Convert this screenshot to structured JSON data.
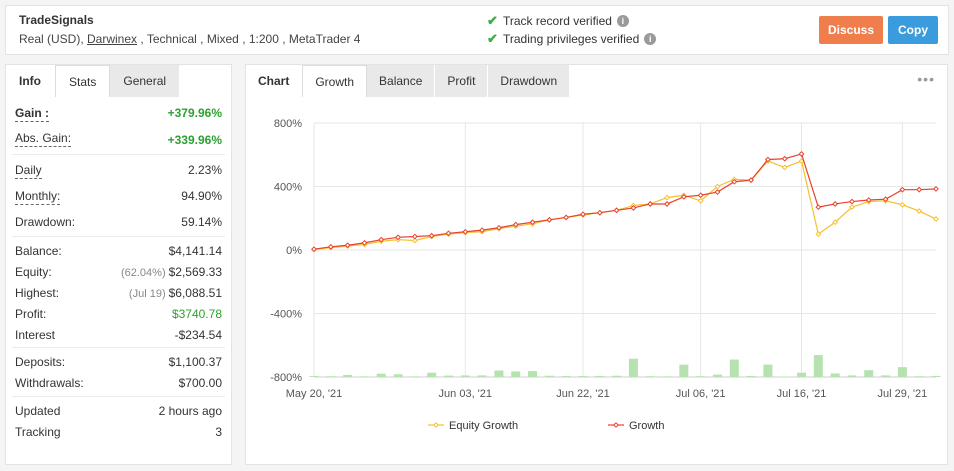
{
  "header": {
    "name": "TradeSignals",
    "meta_prefix": "Real (USD), ",
    "broker": "Darwinex",
    "meta_suffix": " , Technical , Mixed , 1:200 , MetaTrader 4",
    "verify1": "Track record verified",
    "verify2": "Trading privileges verified",
    "discuss_label": "Discuss",
    "copy_label": "Copy"
  },
  "left": {
    "tabs": [
      "Info",
      "Stats",
      "General"
    ],
    "rows": [
      {
        "label": "Gain :",
        "value": "+379.96%",
        "note": ""
      },
      {
        "label": "Abs. Gain:",
        "value": "+339.96%",
        "note": ""
      },
      {
        "label": "Daily",
        "value": "2.23%",
        "note": ""
      },
      {
        "label": "Monthly:",
        "value": "94.90%",
        "note": ""
      },
      {
        "label": "Drawdown:",
        "value": "59.14%",
        "note": ""
      },
      {
        "label": "Balance:",
        "value": "$4,141.14",
        "note": ""
      },
      {
        "label": "Equity:",
        "value": "$2,569.33",
        "note": "(62.04%)"
      },
      {
        "label": "Highest:",
        "value": "$6,088.51",
        "note": "(Jul 19)"
      },
      {
        "label": "Profit:",
        "value": "$3740.78",
        "note": ""
      },
      {
        "label": "Interest",
        "value": "-$234.54",
        "note": ""
      },
      {
        "label": "Deposits:",
        "value": "$1,100.37",
        "note": ""
      },
      {
        "label": "Withdrawals:",
        "value": "$700.00",
        "note": ""
      },
      {
        "label": "Updated",
        "value": "2 hours ago",
        "note": ""
      },
      {
        "label": "Tracking",
        "value": "3",
        "note": ""
      }
    ]
  },
  "right": {
    "tabs": [
      "Chart",
      "Growth",
      "Balance",
      "Profit",
      "Drawdown"
    ],
    "more": "•••"
  },
  "colors": {
    "equity": "#f5c02f",
    "growth": "#e8412c",
    "bars": "#b6e2b0",
    "discuss": "#f07e4d",
    "copy": "#3a9cdc",
    "positive": "#2fa032"
  },
  "chart_data": {
    "type": "line",
    "y_ticks": [
      "800%",
      "400%",
      "0%",
      "-400%",
      "-800%"
    ],
    "y_tick_values": [
      800,
      400,
      0,
      -400,
      -800
    ],
    "ylim": [
      -800,
      800
    ],
    "x_ticks": [
      "May 20, '21",
      "Jun 03, '21",
      "Jun 22, '21",
      "Jul 06, '21",
      "Jul 16, '21",
      "Jul 29, '21"
    ],
    "x_tick_index": [
      0,
      9,
      16,
      23,
      29,
      35
    ],
    "grid": true,
    "legend_position": "bottom",
    "series": [
      {
        "name": "Equity Growth",
        "values": [
          3,
          15,
          25,
          35,
          55,
          65,
          60,
          85,
          100,
          110,
          115,
          135,
          150,
          165,
          190,
          205,
          220,
          235,
          250,
          280,
          290,
          330,
          345,
          310,
          400,
          445,
          440,
          560,
          520,
          560,
          100,
          175,
          270,
          305,
          310,
          285,
          245,
          195
        ]
      },
      {
        "name": "Growth",
        "values": [
          5,
          20,
          30,
          45,
          65,
          80,
          85,
          90,
          105,
          115,
          125,
          140,
          160,
          175,
          190,
          205,
          225,
          235,
          250,
          265,
          290,
          290,
          335,
          345,
          365,
          430,
          440,
          570,
          575,
          605,
          270,
          290,
          305,
          315,
          320,
          380,
          380,
          385
        ]
      }
    ],
    "bars": [
      6,
      5,
      13,
      4,
      21,
      17,
      4,
      27,
      9,
      10,
      10,
      41,
      35,
      37,
      8,
      6,
      6,
      7,
      8,
      115,
      5,
      4,
      78,
      5,
      15,
      110,
      7,
      78,
      3,
      27,
      138,
      22,
      10,
      43,
      10,
      62,
      5,
      7
    ]
  }
}
